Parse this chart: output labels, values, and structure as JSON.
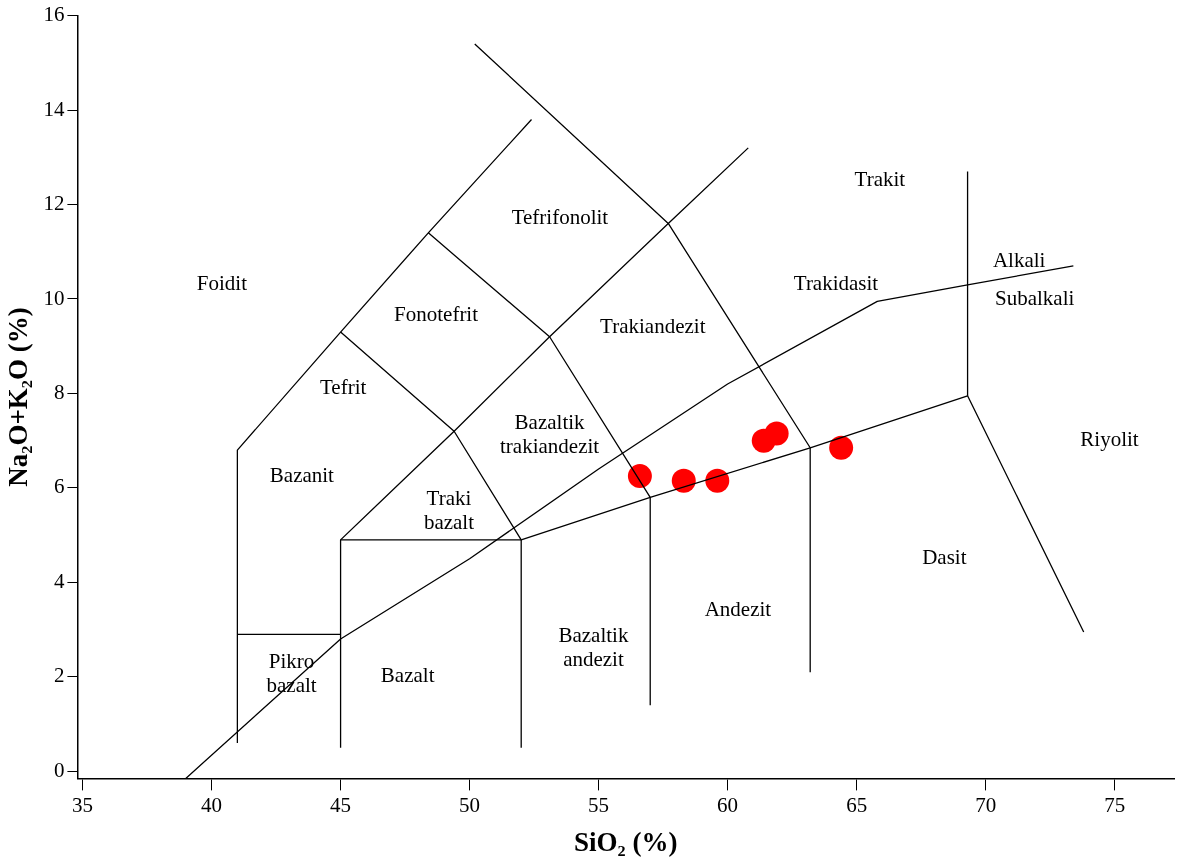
{
  "chart_data": {
    "type": "scatter",
    "xlabel": "SiO₂ (%)",
    "ylabel": "Na₂O+K₂O (%)",
    "xlim": [
      34.8,
      77.3
    ],
    "ylim": [
      -0.15,
      16
    ],
    "xticks": [
      35,
      40,
      45,
      50,
      55,
      60,
      65,
      70,
      75
    ],
    "yticks": [
      0,
      2,
      4,
      6,
      8,
      10,
      12,
      14,
      16
    ],
    "grid": false,
    "legend": false,
    "series": [
      {
        "type": "line",
        "color": "#000000",
        "marker": "none",
        "x": [
          41,
          41,
          45,
          48.4,
          52.4
        ],
        "values": [
          0.6,
          6.8,
          9.3,
          11.4,
          13.8
        ]
      },
      {
        "type": "line",
        "color": "#000000",
        "marker": "none",
        "x": [
          41,
          45
        ],
        "values": [
          2.9,
          2.9
        ]
      },
      {
        "type": "line",
        "color": "#000000",
        "marker": "none",
        "x": [
          45,
          45,
          49.4,
          53.1,
          57.7,
          60.8
        ],
        "values": [
          0.5,
          4.9,
          7.2,
          9.2,
          11.6,
          13.2
        ]
      },
      {
        "type": "line",
        "color": "#000000",
        "marker": "none",
        "x": [
          45,
          52,
          57,
          63.2,
          69.3,
          73.8
        ],
        "values": [
          4.9,
          4.9,
          5.8,
          6.85,
          7.95,
          2.95
        ]
      },
      {
        "type": "line",
        "color": "#000000",
        "marker": "none",
        "x": [
          52,
          52
        ],
        "values": [
          0.5,
          4.9
        ]
      },
      {
        "type": "line",
        "color": "#000000",
        "marker": "none",
        "x": [
          57,
          57,
          53.1,
          48.4
        ],
        "values": [
          1.4,
          5.8,
          9.2,
          11.4
        ]
      },
      {
        "type": "line",
        "color": "#000000",
        "marker": "none",
        "x": [
          63.2,
          63.2,
          57.7,
          50.2
        ],
        "values": [
          2.1,
          6.85,
          11.6,
          15.4
        ]
      },
      {
        "type": "line",
        "color": "#000000",
        "marker": "none",
        "x": [
          69.3,
          69.3
        ],
        "values": [
          7.95,
          12.7
        ]
      },
      {
        "type": "line",
        "color": "#000000",
        "marker": "none",
        "x": [
          45,
          49.4,
          52
        ],
        "values": [
          9.3,
          7.2,
          4.9
        ]
      },
      {
        "type": "line",
        "color": "#000000",
        "marker": "none",
        "x": [
          39,
          45,
          50,
          55,
          60,
          65.8,
          69.3,
          73.4
        ],
        "values": [
          -0.15,
          2.8,
          4.5,
          6.4,
          8.2,
          9.95,
          10.3,
          10.7
        ]
      },
      {
        "type": "scatter",
        "color": "#ff0000",
        "marker": "circle",
        "x": [
          56.6,
          58.3,
          59.6,
          61.4,
          61.9,
          64.4
        ],
        "values": [
          6.25,
          6.15,
          6.15,
          7.0,
          7.15,
          6.85
        ]
      }
    ],
    "annotations": [
      "Foidit",
      "Tefrifonolit",
      "Fonotefrit",
      "Trakiandezit",
      "Trakit",
      "Trakidasit",
      "Tefrit",
      "Bazaltik\ntrakiandezit",
      "Bazanit",
      "Traki\nbazalt",
      "Riyolit",
      "Dasit",
      "Andezit",
      "Bazaltik\nandezit",
      "Pikro\nbazalt",
      "Bazalt",
      "Alkali",
      "Subalkali"
    ]
  }
}
